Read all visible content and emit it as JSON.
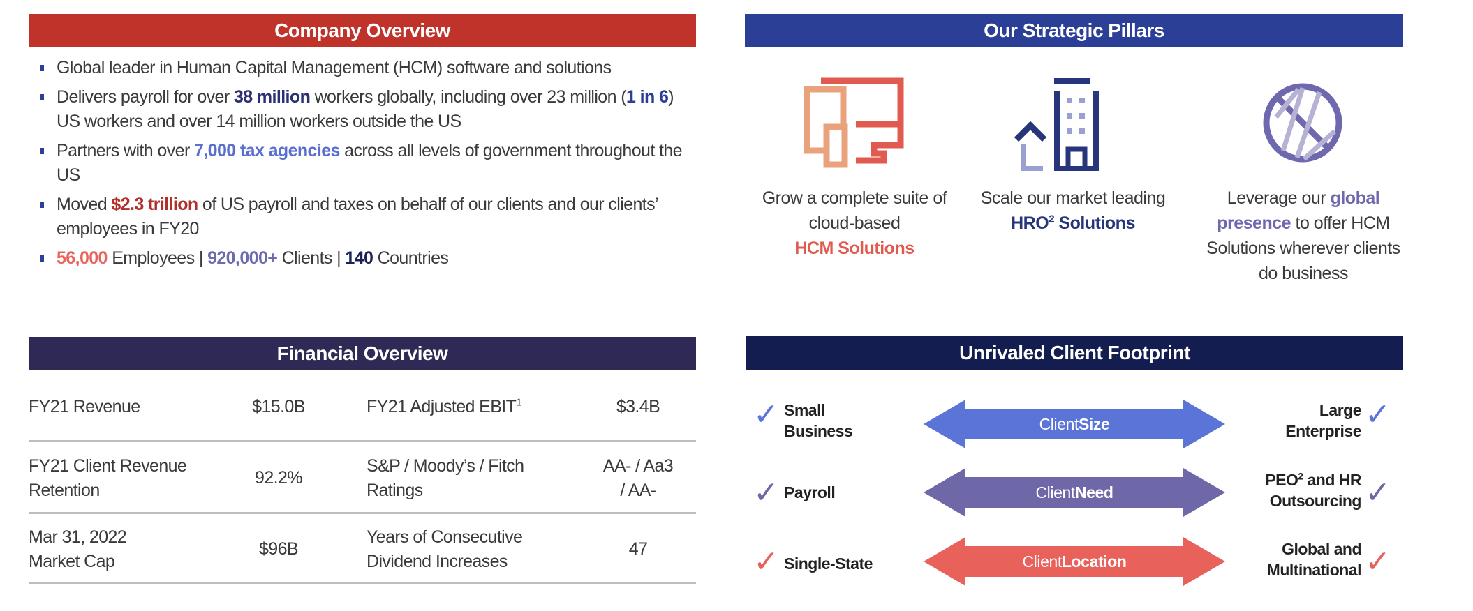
{
  "colors": {
    "company_header": "#c0332b",
    "pillars_header": "#2b3f96",
    "financial_header": "#2e2a55",
    "footprint_header": "#141d4f",
    "size_arrow": "#5b74d8",
    "need_arrow": "#6f68a8",
    "location_arrow": "#e8615a"
  },
  "company": {
    "title": "Company Overview",
    "bullets": [
      {
        "text": "Global leader in Human Capital Management (HCM) software and solutions"
      },
      {
        "pre": "Delivers payroll for over ",
        "hl1": "38 million",
        "mid": " workers globally, including over 23 million (",
        "hl2": "1 in 6",
        "post": ") US workers and over 14 million workers outside the US"
      },
      {
        "pre": "Partners with over ",
        "hl": "7,000 tax agencies",
        "post": " across all levels of government throughout the US"
      },
      {
        "pre": "Moved ",
        "hl": "$2.3 trillion",
        "post": " of US payroll and taxes on behalf of our clients and our clients’ employees in FY20"
      },
      {
        "v1": "56,000",
        "t1": " Employees | ",
        "v2": "920,000+",
        "t2": " Clients | ",
        "v3": "140",
        "t3": " Countries"
      }
    ]
  },
  "pillars": {
    "title": "Our Strategic Pillars",
    "items": [
      {
        "icon": "devices-icon",
        "text": "Grow a complete suite of cloud-based",
        "highlight": "HCM Solutions"
      },
      {
        "icon": "building-icon",
        "text": "Scale our market leading",
        "highlight": "HRO",
        "sup": "2",
        "highlight2": " Solutions"
      },
      {
        "icon": "globe-icon",
        "pre": "Leverage our ",
        "highlight": "global presence",
        "post": " to offer HCM Solutions wherever clients do business"
      }
    ]
  },
  "financial": {
    "title": "Financial Overview",
    "rows": [
      {
        "label1": "FY21 Revenue",
        "value1": "$15.0B",
        "label2": "FY21 Adjusted EBIT",
        "label2_sup": "1",
        "value2": "$3.4B"
      },
      {
        "label1": "FY21 Client Revenue Retention",
        "value1": "92.2%",
        "label2": "S&P / Moody’s / Fitch Ratings",
        "value2": "AA- / Aa3 / AA-"
      },
      {
        "label1": "Mar 31, 2022 Market Cap",
        "value1": "$96B",
        "label2": "Years of Consecutive Dividend Increases",
        "value2": "47"
      }
    ]
  },
  "footprint": {
    "title": "Unrivaled Client Footprint",
    "rows": [
      {
        "left": "Small Business",
        "arrow_pre": "Client ",
        "arrow_bold": "Size",
        "right": "Large Enterprise"
      },
      {
        "left": "Payroll",
        "arrow_pre": "Client ",
        "arrow_bold": "Need",
        "right_pre": "PEO",
        "right_sup": "2",
        "right_post": " and HR Outsourcing"
      },
      {
        "left": "Single-State",
        "arrow_pre": "Client ",
        "arrow_bold": "Location",
        "right": "Global and Multinational"
      }
    ]
  }
}
